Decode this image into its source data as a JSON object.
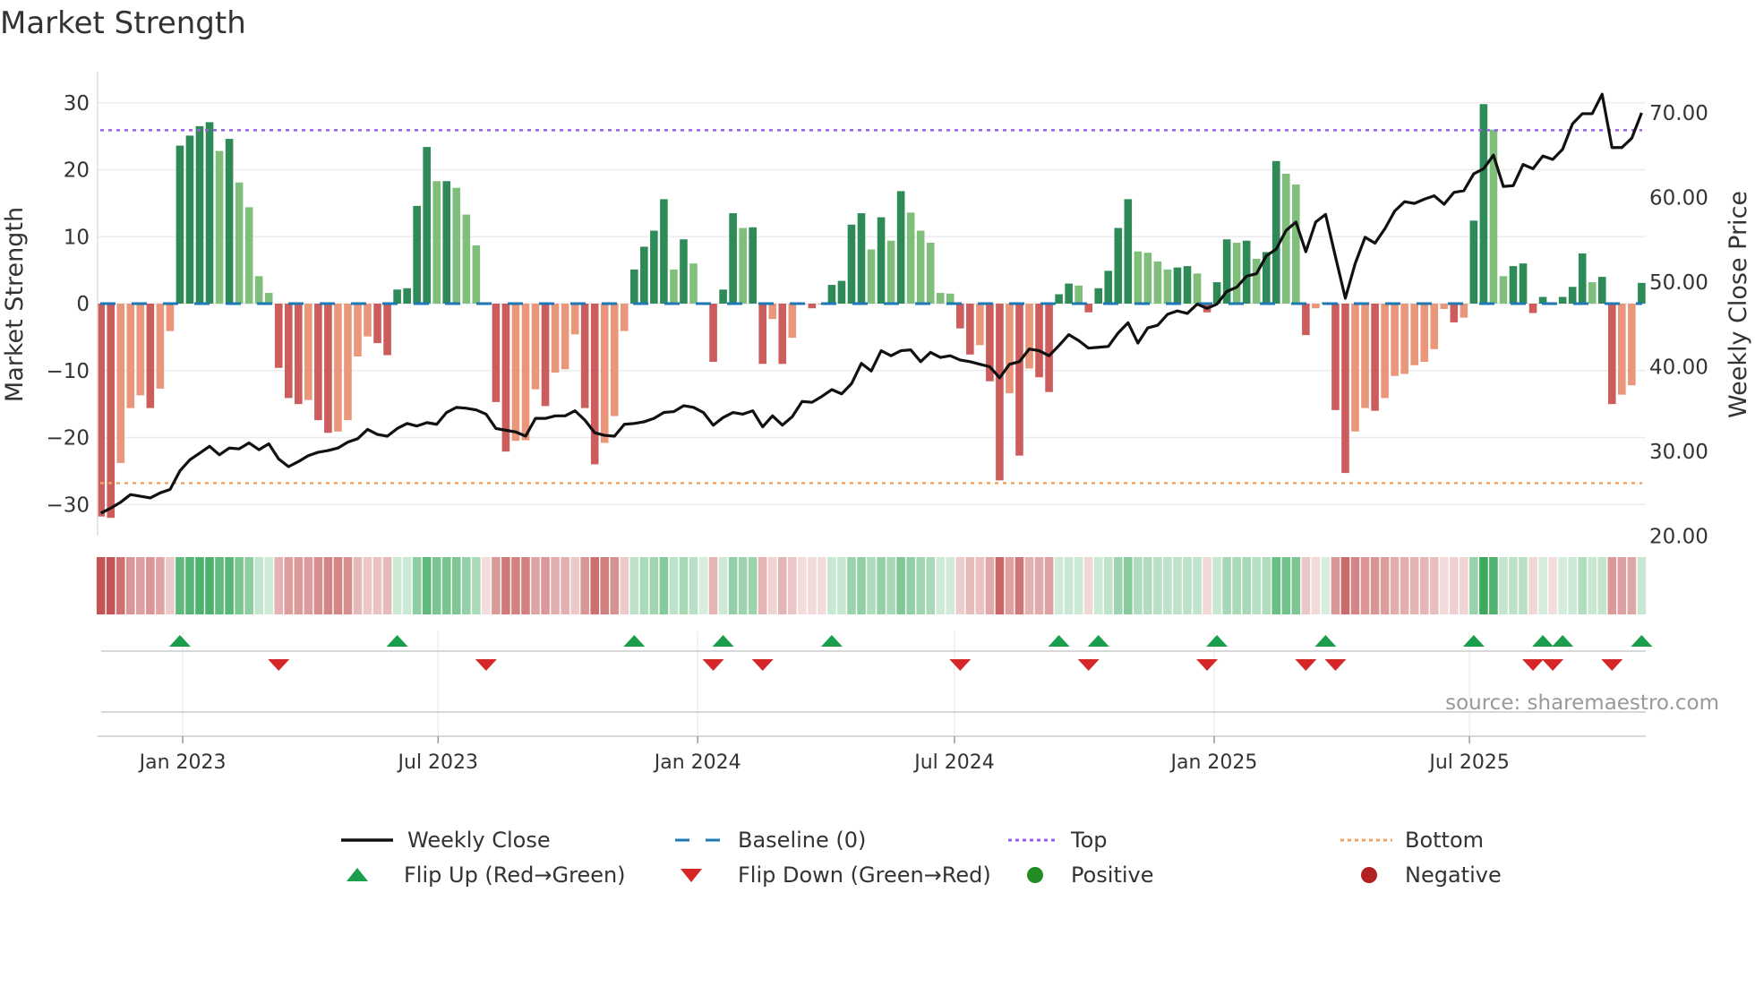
{
  "title": "Market Strength",
  "source": "source: sharemaestro.com",
  "colors": {
    "pos_strong": "#2e8b57",
    "pos_weak": "#7fbf7b",
    "neg_strong": "#cd5c5c",
    "neg_weak": "#e9967a",
    "baseline": "#1f77b4",
    "top": "#9b5de5",
    "bottom": "#f4a261",
    "flip_up": "#1a9e4b",
    "flip_down": "#d62728",
    "positive": "#228b22",
    "negative": "#b22222",
    "close": "#111111"
  },
  "chart_data": {
    "type": "bar",
    "title": "Market Strength",
    "ylabel": "Market Strength",
    "y2label": "Weekly Close Price",
    "ylim": [
      -35,
      35
    ],
    "y2lim": [
      20,
      70
    ],
    "yticks": [
      "30",
      "20",
      "10",
      "0",
      "−10",
      "−20",
      "−30"
    ],
    "ytick_values": [
      30,
      20,
      10,
      0,
      -10,
      -20,
      -30
    ],
    "y2ticks": [
      "70.00",
      "60.00",
      "50.00",
      "40.00",
      "30.00",
      "20.00"
    ],
    "y2tick_values": [
      70,
      60,
      50,
      40,
      30,
      20
    ],
    "start_date": "2022-11-04",
    "frequency": "weekly",
    "xticks": [
      {
        "label": "Jan 2023",
        "date": "2023-01-01"
      },
      {
        "label": "Jul 2023",
        "date": "2023-07-01"
      },
      {
        "label": "Jan 2024",
        "date": "2024-01-01"
      },
      {
        "label": "Jul 2024",
        "date": "2024-07-01"
      },
      {
        "label": "Jan 2025",
        "date": "2025-01-01"
      },
      {
        "label": "Jul 2025",
        "date": "2025-07-01"
      }
    ],
    "top": 25.9,
    "bottom": -26.8,
    "baseline": 0,
    "series": [
      {
        "name": "Market Strength",
        "values": [
          -31.8,
          -32,
          -23.8,
          -15.6,
          -13.7,
          -15.6,
          -12.7,
          -4.1,
          23.6,
          25.1,
          26.5,
          27.1,
          22.8,
          24.6,
          18.1,
          14.4,
          4.1,
          1.6,
          -9.6,
          -14.1,
          -15,
          -14.4,
          -17.4,
          -19.3,
          -19.1,
          -17.4,
          -7.9,
          -4.9,
          -5.9,
          -7.7,
          2.1,
          2.3,
          14.6,
          23.4,
          18.3,
          18.3,
          17.3,
          13.3,
          8.7,
          -0.2,
          -14.7,
          -22.1,
          -20.5,
          -20.4,
          -12.8,
          -15.3,
          -10.3,
          -9.8,
          -4.6,
          -15.6,
          -24,
          -20.8,
          -16.8,
          -4.1,
          5.1,
          8.5,
          10.9,
          15.6,
          5.1,
          9.6,
          6.0,
          0.1,
          -8.7,
          2.1,
          13.5,
          11.3,
          11.4,
          -9.0,
          -2.3,
          -9.0,
          -5.1,
          -0.1,
          -0.7,
          -0.1,
          2.8,
          3.4,
          11.8,
          13.5,
          8.1,
          12.9,
          9.4,
          16.8,
          13.6,
          10.9,
          9.1,
          1.6,
          1.5,
          -3.7,
          -7.6,
          -6.2,
          -11.6,
          -26.4,
          -13.4,
          -22.7,
          -9.7,
          -11,
          -13.2,
          1.4,
          3.0,
          2.7,
          -1.3,
          2.3,
          4.9,
          11.3,
          15.6,
          7.8,
          7.6,
          6.3,
          5.1,
          5.4,
          5.6,
          4.5,
          -1.3,
          3.2,
          9.6,
          9.1,
          9.4,
          6.7,
          7.7,
          21.3,
          19.4,
          17.8,
          -4.7,
          -0.7,
          0.2,
          -15.9,
          -25.3,
          -19.1,
          -15.6,
          -16,
          -14.1,
          -10.8,
          -10.5,
          -9.2,
          -8.7,
          -6.8,
          -0.8,
          -2.8,
          -2.1,
          12.4,
          29.8,
          26,
          4.1,
          5.6,
          6.0,
          -1.4,
          1.0,
          -0.2,
          1.0,
          2.5,
          7.5,
          3.2,
          4.0,
          -15,
          -13.6,
          -12.2,
          3.1
        ]
      },
      {
        "name": "Weekly Close",
        "values": [
          22.7,
          23.3,
          24.0,
          24.9,
          24.7,
          24.5,
          25.1,
          25.5,
          27.7,
          29.0,
          29.8,
          30.6,
          29.6,
          30.4,
          30.3,
          31.0,
          30.2,
          30.9,
          29.1,
          28.2,
          28.8,
          29.5,
          29.9,
          30.1,
          30.4,
          31.1,
          31.5,
          32.6,
          32.0,
          31.8,
          32.7,
          33.3,
          33.0,
          33.4,
          33.2,
          34.6,
          35.2,
          35.1,
          34.9,
          34.4,
          32.7,
          32.5,
          32.3,
          31.8,
          33.9,
          33.9,
          34.2,
          34.2,
          34.8,
          33.7,
          32.2,
          31.9,
          31.8,
          33.2,
          33.3,
          33.5,
          33.9,
          34.6,
          34.7,
          35.4,
          35.2,
          34.6,
          33.1,
          34.0,
          34.6,
          34.4,
          34.8,
          32.9,
          34.2,
          33.1,
          34.1,
          35.9,
          35.8,
          36.5,
          37.3,
          36.8,
          38.0,
          40.4,
          39.5,
          41.9,
          41.3,
          41.9,
          42.0,
          40.6,
          41.7,
          41.1,
          41.3,
          40.8,
          40.6,
          40.3,
          40.0,
          38.7,
          40.3,
          40.6,
          42.1,
          41.9,
          41.3,
          42.5,
          43.8,
          43.1,
          42.2,
          42.3,
          42.4,
          44.0,
          45.2,
          42.8,
          44.6,
          44.9,
          46.2,
          46.6,
          46.3,
          47.4,
          46.9,
          47.4,
          48.9,
          49.4,
          50.7,
          51.0,
          53.1,
          53.9,
          56.1,
          57.1,
          53.6,
          57.1,
          58.0,
          53.0,
          48.1,
          52.2,
          55.3,
          54.6,
          56.3,
          58.4,
          59.5,
          59.3,
          59.8,
          60.2,
          59.2,
          60.6,
          60.8,
          62.8,
          63.4,
          65.0,
          61.3,
          61.4,
          63.9,
          63.4,
          64.9,
          64.5,
          65.7,
          68.7,
          69.9,
          69.9,
          72.2,
          65.9,
          65.9,
          67.0,
          70.0
        ]
      }
    ],
    "flip_up_weeks": [
      9,
      31,
      55,
      64,
      75,
      98,
      102,
      114,
      125,
      140,
      147,
      149,
      157
    ],
    "flip_down_weeks": [
      19,
      40,
      63,
      68,
      88,
      101,
      113,
      123,
      126,
      146,
      148,
      154
    ],
    "legend_position": "bottom",
    "grid": true
  },
  "legend": {
    "weekly_close": "Weekly Close",
    "baseline": "Baseline (0)",
    "top": "Top",
    "bottom": "Bottom",
    "flip_up": "Flip Up (Red→Green)",
    "flip_down": "Flip Down (Green→Red)",
    "positive": "Positive",
    "negative": "Negative"
  }
}
